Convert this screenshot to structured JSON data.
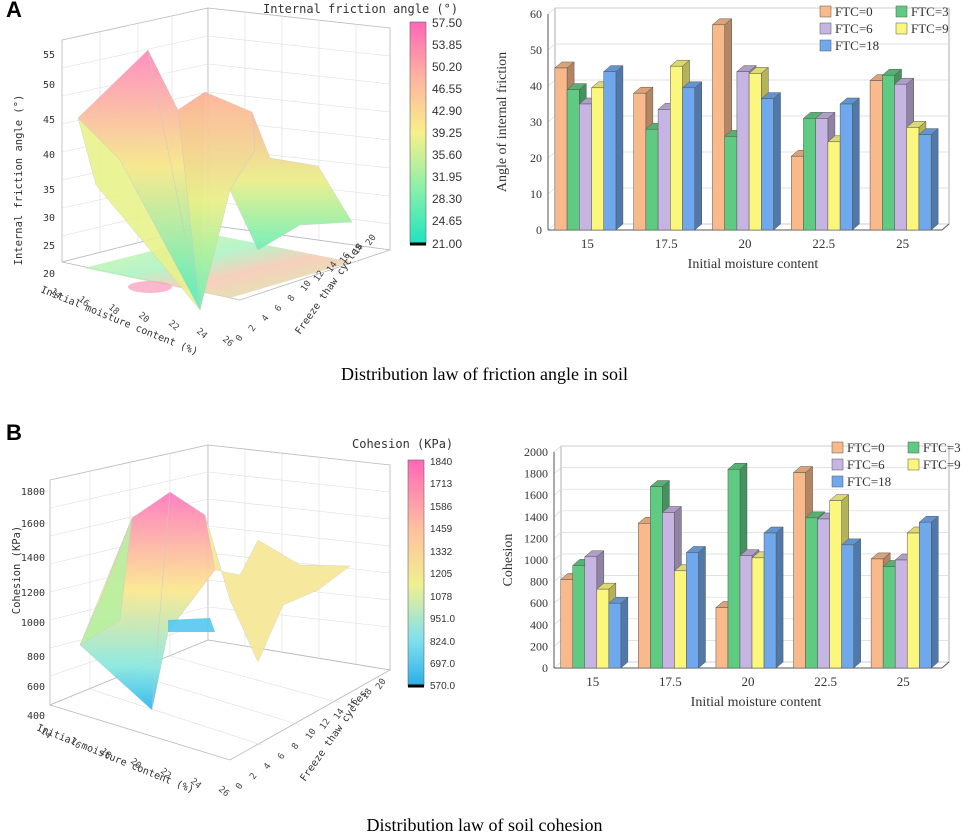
{
  "panels": [
    {
      "label": "A",
      "caption": "Distribution law of friction angle in soil",
      "surface": {
        "title": "Internal friction angle (°)",
        "zlabel": "Internal friction angle (°)",
        "xlabel": "Initial moisture content (%)",
        "ylabel": "Freeze thaw cycles",
        "zticks": [
          "20",
          "25",
          "30",
          "35",
          "40",
          "45",
          "50",
          "55"
        ],
        "xticks": [
          "14",
          "16",
          "18",
          "20",
          "22",
          "24",
          "26"
        ],
        "yticks": [
          "0",
          "2",
          "4",
          "6",
          "8",
          "10",
          "12",
          "14",
          "16",
          "18",
          "20"
        ],
        "colorbar_ticks": [
          "57.50",
          "53.85",
          "50.20",
          "46.55",
          "42.90",
          "39.25",
          "35.60",
          "31.95",
          "28.30",
          "24.65",
          "21.00"
        ]
      },
      "bar": {
        "ylabel": "Angle of internal friction",
        "xlabel": "Initial moisture content",
        "yticks": [
          "0",
          "10",
          "20",
          "30",
          "40",
          "50",
          "60"
        ]
      }
    },
    {
      "label": "B",
      "caption": "Distribution law of soil cohesion",
      "surface": {
        "title": "Cohesion (KPa)",
        "zlabel": "Cohesion (KPa)",
        "xlabel": "Initial moisture content (%)",
        "ylabel": "Freeze thaw cycles",
        "zticks": [
          "400",
          "600",
          "800",
          "1000",
          "1200",
          "1400",
          "1600",
          "1800"
        ],
        "xticks": [
          "14",
          "16",
          "18",
          "20",
          "22",
          "24",
          "26"
        ],
        "yticks": [
          "0",
          "2",
          "4",
          "6",
          "8",
          "10",
          "12",
          "14",
          "16",
          "18",
          "20"
        ],
        "colorbar_ticks": [
          "1840",
          "1713",
          "1586",
          "1459",
          "1332",
          "1205",
          "1078",
          "951.0",
          "824.0",
          "697.0",
          "570.0"
        ]
      },
      "bar": {
        "ylabel": "Cohesion",
        "xlabel": "Initial moisture content",
        "yticks": [
          "0",
          "200",
          "400",
          "600",
          "800",
          "1000",
          "1200",
          "1400",
          "1600",
          "1800",
          "2000"
        ]
      }
    }
  ],
  "colors": {
    "FTC=0": "#f9b98a",
    "FTC=3": "#5fcb82",
    "FTC=6": "#c6b4e2",
    "FTC=9": "#fbf77d",
    "FTC=18": "#6fa8ec",
    "grid": "#d8d8d8",
    "axis": "#555555"
  },
  "chart_data": [
    {
      "type": "bar",
      "title": "Distribution law of friction angle in soil",
      "xlabel": "Initial moisture content",
      "ylabel": "Angle of internal friction",
      "ylim": [
        0,
        60
      ],
      "categories": [
        "15",
        "17.5",
        "20",
        "22.5",
        "25"
      ],
      "series": [
        {
          "name": "FTC=0",
          "values": [
            45,
            38,
            57,
            20.5,
            41.5
          ]
        },
        {
          "name": "FTC=3",
          "values": [
            39,
            28,
            26,
            31,
            43
          ]
        },
        {
          "name": "FTC=6",
          "values": [
            35,
            33.5,
            44,
            31,
            40.5
          ]
        },
        {
          "name": "FTC=9",
          "values": [
            39.5,
            45.5,
            43.5,
            24.5,
            28.5
          ]
        },
        {
          "name": "FTC=18",
          "values": [
            44,
            39.5,
            36.5,
            35,
            26.5
          ]
        }
      ],
      "legend_position": "top-right"
    },
    {
      "type": "bar",
      "title": "Distribution law of soil cohesion",
      "xlabel": "Initial moisture content",
      "ylabel": "Cohesion",
      "ylim": [
        0,
        2000
      ],
      "categories": [
        "15",
        "17.5",
        "20",
        "22.5",
        "25"
      ],
      "series": [
        {
          "name": "FTC=0",
          "values": [
            820,
            1340,
            560,
            1810,
            1010
          ]
        },
        {
          "name": "FTC=3",
          "values": [
            950,
            1680,
            1840,
            1390,
            940
          ]
        },
        {
          "name": "FTC=6",
          "values": [
            1030,
            1440,
            1040,
            1380,
            1000
          ]
        },
        {
          "name": "FTC=9",
          "values": [
            730,
            900,
            1020,
            1550,
            1250
          ]
        },
        {
          "name": "FTC=18",
          "values": [
            600,
            1070,
            1250,
            1140,
            1350
          ]
        }
      ],
      "legend_position": "top-right"
    }
  ]
}
